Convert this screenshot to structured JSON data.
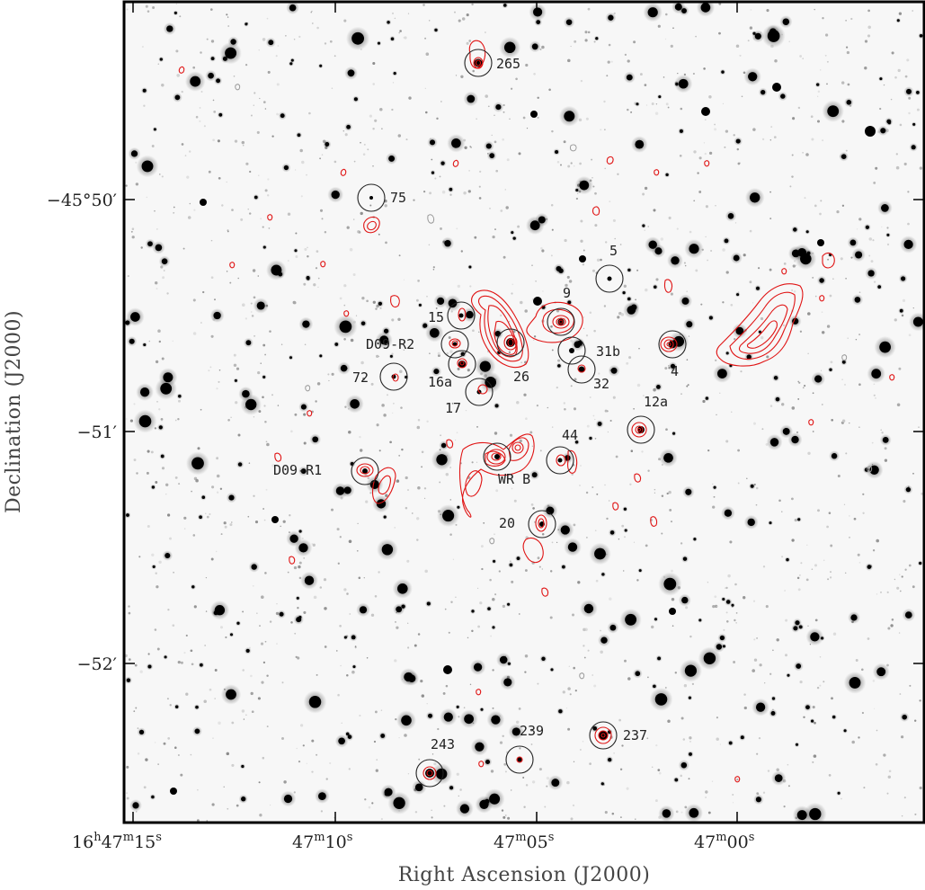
{
  "figure": {
    "x_axis_title": "Right Ascension (J2000)",
    "y_axis_title": "Declination (J2000)",
    "x_ticks": [
      {
        "h": "16",
        "m": "47",
        "s": "15",
        "full": true
      },
      {
        "m": "47",
        "s": "10"
      },
      {
        "m": "47",
        "s": "05"
      },
      {
        "m": "47",
        "s": "00"
      }
    ],
    "y_ticks": [
      "−45°50′",
      "−51′",
      "−52′"
    ],
    "sources": [
      "265",
      "75",
      "5",
      "9",
      "15",
      "D09-R2",
      "31b",
      "72",
      "16a",
      "26",
      "32",
      "4",
      "17",
      "12a",
      "44",
      "D09-R1",
      "WR B",
      "20",
      "243",
      "239",
      "237"
    ],
    "colors": {
      "contour": "#e01414",
      "star": "#000000",
      "marker_circle": "#222222",
      "frame": "#000000",
      "background": "#f7f7f7"
    }
  }
}
